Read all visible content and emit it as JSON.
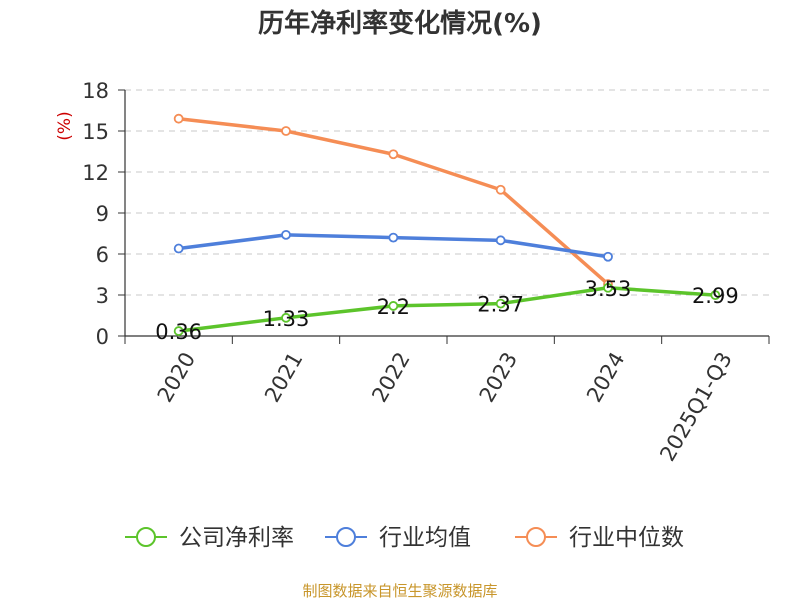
{
  "chart_data": {
    "type": "line",
    "title": "历年净利率变化情况(%)",
    "ylabel": "(%)",
    "categories": [
      "2020",
      "2021",
      "2022",
      "2023",
      "2024",
      "2025Q1-Q3"
    ],
    "ylim": [
      0,
      18
    ],
    "yticks": [
      0,
      3,
      6,
      9,
      12,
      15,
      18
    ],
    "grid": true,
    "legend_position": "bottom",
    "series": [
      {
        "name": "公司净利率",
        "color": "#5cc42b",
        "values": [
          0.36,
          1.33,
          2.2,
          2.37,
          3.53,
          2.99
        ],
        "labels": [
          "0.36",
          "1.33",
          "2.2",
          "2.37",
          "3.53",
          "2.99"
        ]
      },
      {
        "name": "行业均值",
        "color": "#4e7fdb",
        "values": [
          6.4,
          7.4,
          7.2,
          7.0,
          5.8,
          null
        ]
      },
      {
        "name": "行业中位数",
        "color": "#f58d55",
        "values": [
          15.9,
          15.0,
          13.3,
          10.7,
          3.8,
          null
        ]
      }
    ]
  },
  "source": "制图数据来自恒生聚源数据库"
}
